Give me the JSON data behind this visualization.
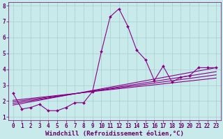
{
  "title": "",
  "xlabel": "Windchill (Refroidissement éolien,°C)",
  "ylabel": "",
  "bg_color": "#c8eaea",
  "grid_color": "#a8cece",
  "line_color": "#880088",
  "xlim": [
    -0.5,
    23.5
  ],
  "ylim": [
    0.8,
    8.2
  ],
  "xticks": [
    0,
    1,
    2,
    3,
    4,
    5,
    6,
    7,
    8,
    9,
    10,
    11,
    12,
    13,
    14,
    15,
    16,
    17,
    18,
    19,
    20,
    21,
    22,
    23
  ],
  "yticks": [
    1,
    2,
    3,
    4,
    5,
    6,
    7,
    8
  ],
  "main_line": {
    "x": [
      0,
      1,
      2,
      3,
      4,
      5,
      6,
      7,
      8,
      9,
      10,
      11,
      12,
      13,
      14,
      15,
      16,
      17,
      18,
      19,
      20,
      21,
      22,
      23
    ],
    "y": [
      2.5,
      1.5,
      1.6,
      1.8,
      1.4,
      1.4,
      1.6,
      1.9,
      1.9,
      2.6,
      5.1,
      7.3,
      7.8,
      6.7,
      5.2,
      4.6,
      3.3,
      4.2,
      3.2,
      3.5,
      3.6,
      4.1,
      4.1,
      4.1
    ]
  },
  "straight_lines": [
    {
      "x0": 0,
      "y0": 1.75,
      "x1": 23,
      "y1": 4.1
    },
    {
      "x0": 0,
      "y0": 1.85,
      "x1": 23,
      "y1": 3.85
    },
    {
      "x0": 0,
      "y0": 1.95,
      "x1": 23,
      "y1": 3.65
    },
    {
      "x0": 0,
      "y0": 2.05,
      "x1": 23,
      "y1": 3.45
    }
  ],
  "font_color": "#660066",
  "tick_fontsize": 5.5,
  "xlabel_fontsize": 6.5,
  "marker": "D",
  "markersize": 2.0,
  "linewidth": 0.8
}
